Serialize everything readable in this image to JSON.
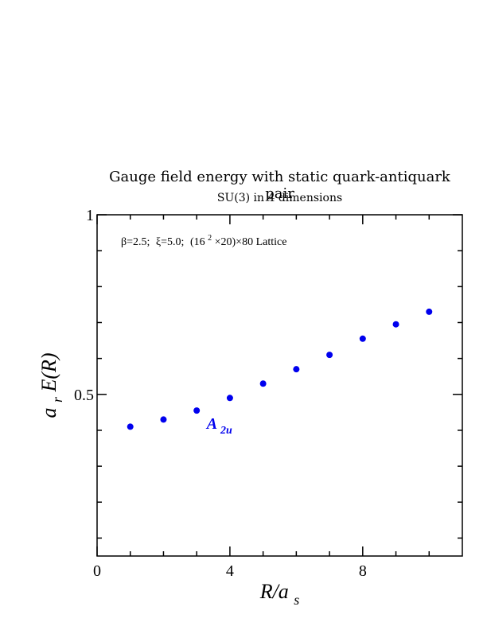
{
  "chart_data": {
    "type": "scatter",
    "title": "Gauge field energy with static quark-antiquark pair",
    "subtitle": "SU(3) in 4 dimensions",
    "xlabel": {
      "main": "R/a",
      "sub": "s"
    },
    "ylabel": {
      "pre": "a",
      "sub": "r",
      "main": "E(R)"
    },
    "xlim": [
      0,
      11
    ],
    "ylim": [
      0.05,
      1
    ],
    "x_ticks": [
      0,
      4,
      8
    ],
    "x_minor_ticks": [
      1,
      2,
      3,
      5,
      6,
      7,
      9,
      10
    ],
    "y_tick_labels": [
      {
        "value": 0.5,
        "label": "0.5"
      },
      {
        "value": 1,
        "label": "1"
      }
    ],
    "y_minor_ticks": [
      0.1,
      0.2,
      0.3,
      0.4,
      0.6,
      0.7,
      0.8,
      0.9
    ],
    "annotation": {
      "beta": "β=2.5;",
      "xi": "ξ=5.0;",
      "lattice_a": "(16",
      "lattice_sup": "2",
      "lattice_b": "×20)×80 Lattice"
    },
    "grid": false,
    "series": [
      {
        "label_main": "A",
        "label_sub": "2u",
        "color": "#0000ee",
        "x": [
          1,
          2,
          3,
          4,
          5,
          6,
          7,
          8,
          9,
          10
        ],
        "y": [
          0.41,
          0.43,
          0.455,
          0.49,
          0.53,
          0.57,
          0.61,
          0.655,
          0.695,
          0.73
        ]
      }
    ]
  }
}
